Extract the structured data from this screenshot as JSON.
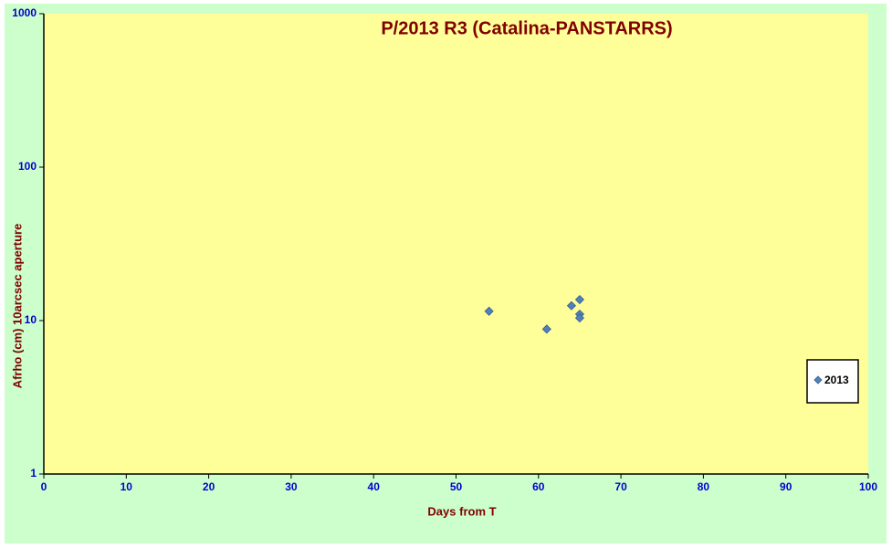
{
  "chart_data": {
    "type": "scatter",
    "title": "P/2013 R3 (Catalina-PANSTARRS)",
    "x_label": "Days from  T",
    "y_label": "Afrho (cm) 10arcsec aperture",
    "series": [
      {
        "name": "2013",
        "color": "#4f81bd",
        "x": [
          54,
          61,
          64,
          65,
          65,
          65
        ],
        "values": [
          11.5,
          8.8,
          12.5,
          13.7,
          11,
          10.4
        ]
      }
    ],
    "xlim": [
      0,
      100
    ],
    "xticks": [
      0,
      10,
      20,
      30,
      40,
      50,
      60,
      70,
      80,
      90,
      100
    ],
    "ylim": [
      1,
      1000
    ],
    "yticks": [
      1,
      10,
      100,
      1000
    ],
    "ylog": true,
    "grid": false,
    "legend": "right"
  }
}
